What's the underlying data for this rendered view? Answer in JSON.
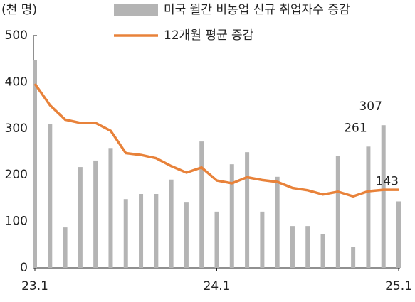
{
  "chart_data": {
    "type": "bar-line",
    "y_unit_label": "(천 명)",
    "categories": [
      "23.1",
      null,
      null,
      null,
      null,
      null,
      null,
      null,
      null,
      null,
      null,
      null,
      "24.1",
      null,
      null,
      null,
      null,
      null,
      null,
      null,
      null,
      null,
      null,
      null,
      "25.1"
    ],
    "series": [
      {
        "name": "미국 월간 비농업 신규 취업자수 증감",
        "type": "bar",
        "color": "#b4b4b4",
        "values": [
          448,
          310,
          87,
          217,
          231,
          258,
          148,
          159,
          159,
          190,
          142,
          272,
          121,
          223,
          249,
          121,
          196,
          90,
          90,
          73,
          241,
          45,
          261,
          307,
          143
        ],
        "value_labels": [
          null,
          null,
          null,
          null,
          null,
          null,
          null,
          null,
          null,
          null,
          null,
          null,
          null,
          null,
          null,
          null,
          null,
          null,
          null,
          null,
          null,
          null,
          "261",
          "307",
          "143"
        ]
      },
      {
        "name": "12개월 평균 증감",
        "type": "line",
        "color": "#e8823a",
        "values": [
          396,
          350,
          319,
          312,
          312,
          295,
          247,
          243,
          236,
          219,
          205,
          216,
          188,
          182,
          195,
          189,
          185,
          172,
          167,
          158,
          164,
          154,
          165,
          168,
          168
        ]
      }
    ],
    "ylim": [
      0,
      500
    ],
    "yticks": [
      0,
      100,
      200,
      300,
      400,
      500
    ],
    "grid": false
  }
}
